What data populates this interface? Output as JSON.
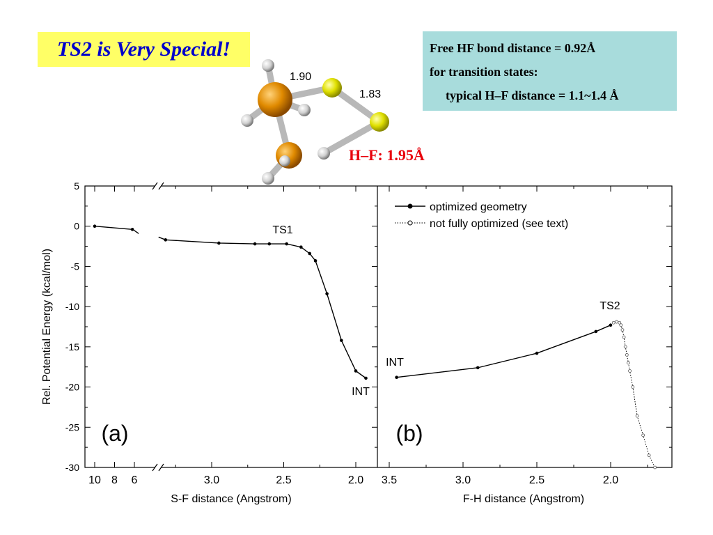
{
  "header": {
    "title": "TS2 is Very Special!",
    "info_lines": [
      "Free HF bond distance = 0.92Å",
      "for transition states:",
      "typical H–F distance = 1.1~1.4 Å"
    ]
  },
  "molecule": {
    "bond_labels": [
      "1.90",
      "1.83"
    ],
    "hf_label": "H–F: 1.95Å",
    "hf_label_color": "#e8000b",
    "atom_colors": {
      "orange": "#e68a00",
      "yellow": "#e6e600",
      "hydrogen": "#dddddd"
    }
  },
  "chart_data": [
    {
      "type": "line",
      "panel_label": "(a)",
      "xlabel": "S-F distance (Angstrom)",
      "ylabel": "Rel. Potential Energy (kcal/mol)",
      "ylim": [
        -30,
        5
      ],
      "y_ticks": [
        "5",
        "0",
        "-5",
        "-10",
        "-15",
        "-20",
        "-25",
        "-30"
      ],
      "x_broken_axis": true,
      "x_tick_labels_left": [
        "10",
        "8",
        "6"
      ],
      "x_tick_labels_right": [
        "3.0",
        "2.5",
        "2.0"
      ],
      "series": [
        {
          "name": "optimized geometry",
          "segment_far": {
            "x": [
              10,
              6.2
            ],
            "y": [
              0.0,
              -0.4
            ]
          },
          "segment_near": {
            "x": [
              3.32,
              2.95,
              2.7,
              2.6,
              2.48,
              2.38,
              2.32,
              2.28,
              2.2,
              2.1,
              2.0,
              1.93
            ],
            "y": [
              -1.7,
              -2.1,
              -2.2,
              -2.2,
              -2.2,
              -2.6,
              -3.4,
              -4.3,
              -8.4,
              -14.2,
              -18.0,
              -18.9
            ]
          }
        }
      ],
      "annotations": [
        "TS1",
        "INT"
      ],
      "grid": false
    },
    {
      "type": "line",
      "panel_label": "(b)",
      "xlabel": "F-H distance (Angstrom)",
      "xlim": [
        3.5,
        1.6
      ],
      "ylim": [
        -30,
        5
      ],
      "x_tick_labels": [
        "3.5",
        "3.0",
        "2.5",
        "2.0"
      ],
      "series": [
        {
          "name": "optimized geometry",
          "x": [
            3.45,
            2.9,
            2.5,
            2.1,
            2.0
          ],
          "y": [
            -18.8,
            -17.6,
            -15.8,
            -13.1,
            -12.3
          ]
        },
        {
          "name": "not fully optimized (see text)",
          "x": [
            2.0,
            1.98,
            1.96,
            1.94,
            1.93,
            1.92,
            1.91,
            1.9,
            1.89,
            1.88,
            1.87,
            1.85,
            1.82,
            1.78,
            1.74,
            1.7
          ],
          "y": [
            -12.3,
            -12.0,
            -11.9,
            -12.0,
            -12.3,
            -12.9,
            -13.8,
            -15.0,
            -16.0,
            -17.0,
            -18.0,
            -20.0,
            -23.6,
            -26.0,
            -28.5,
            -30.0
          ]
        }
      ],
      "annotations": [
        "TS2",
        "INT"
      ],
      "legend_position": "top-right",
      "grid": false
    }
  ]
}
